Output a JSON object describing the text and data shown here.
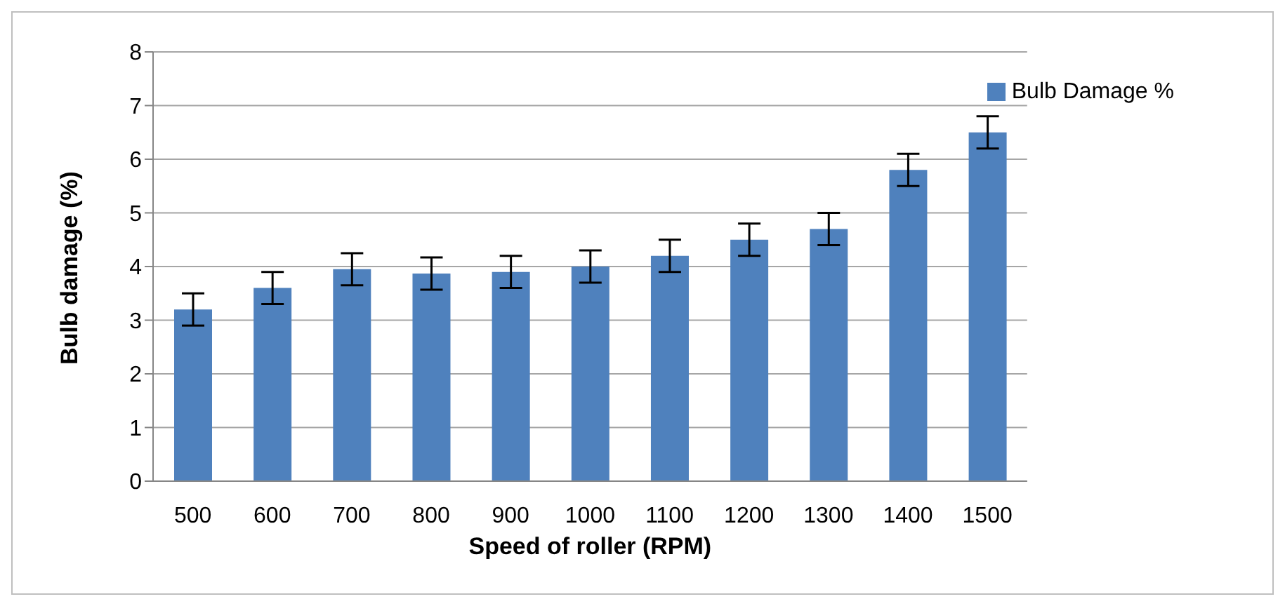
{
  "chart_data": {
    "type": "bar",
    "xlabel": "Speed of roller (RPM)",
    "ylabel": "Bulb damage (%)",
    "categories": [
      "500",
      "600",
      "700",
      "800",
      "900",
      "1000",
      "1100",
      "1200",
      "1300",
      "1400",
      "1500"
    ],
    "series": [
      {
        "name": "Bulb Damage %",
        "color": "#4f81bd",
        "values": [
          3.2,
          3.6,
          3.95,
          3.87,
          3.9,
          4.0,
          4.2,
          4.5,
          4.7,
          5.8,
          6.5
        ],
        "errors": [
          0.3,
          0.3,
          0.3,
          0.3,
          0.3,
          0.3,
          0.3,
          0.3,
          0.3,
          0.3,
          0.3
        ]
      }
    ],
    "ylim": [
      0,
      8
    ],
    "yticks": [
      0,
      1,
      2,
      3,
      4,
      5,
      6,
      7,
      8
    ],
    "grid": "y",
    "legend": "top right"
  }
}
